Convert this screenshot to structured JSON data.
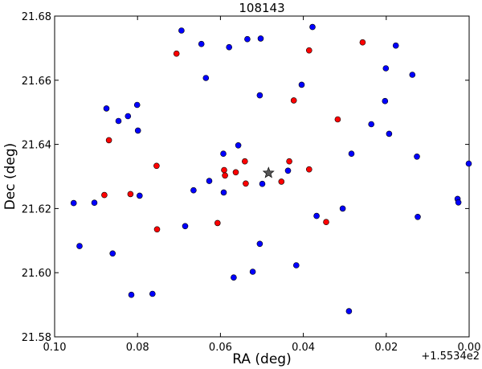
{
  "chart_data": {
    "type": "scatter",
    "title": "108143",
    "xlabel": "RA (deg)",
    "ylabel": "Dec (deg)",
    "x_offset_label": "+1.5534e2",
    "xlim": [
      0.1,
      0.0
    ],
    "ylim": [
      21.58,
      21.68
    ],
    "x_ticks": [
      "0.10",
      "0.08",
      "0.06",
      "0.04",
      "0.02",
      "0.00"
    ],
    "y_ticks": [
      "21.58",
      "21.60",
      "21.62",
      "21.64",
      "21.66",
      "21.68"
    ],
    "grid": false,
    "colors": {
      "blue": "#0000ff",
      "red": "#ff0000",
      "star": "#555555"
    },
    "series": [
      {
        "color": "blue",
        "points": [
          [
            0.0694,
            21.6755
          ],
          [
            0.0646,
            21.6713
          ],
          [
            0.0579,
            21.6703
          ],
          [
            0.0535,
            21.6728
          ],
          [
            0.0503,
            21.673
          ],
          [
            0.0378,
            21.6766
          ],
          [
            0.0177,
            21.6708
          ],
          [
            0.0635,
            21.6607
          ],
          [
            0.0404,
            21.6586
          ],
          [
            0.0201,
            21.6637
          ],
          [
            0.0137,
            21.6617
          ],
          [
            0.0505,
            21.6553
          ],
          [
            0.0875,
            21.6512
          ],
          [
            0.0801,
            21.6523
          ],
          [
            0.0823,
            21.6488
          ],
          [
            0.0846,
            21.6473
          ],
          [
            0.0799,
            21.6443
          ],
          [
            0.0203,
            21.6535
          ],
          [
            0.0236,
            21.6463
          ],
          [
            0.0193,
            21.6433
          ],
          [
            0.0557,
            21.6397
          ],
          [
            0.0593,
            21.6371
          ],
          [
            0.0284,
            21.6371
          ],
          [
            0.0126,
            21.6362
          ],
          [
            0.0001,
            21.634
          ],
          [
            0.0437,
            21.6318
          ],
          [
            0.0499,
            21.6277
          ],
          [
            0.0627,
            21.6286
          ],
          [
            0.0665,
            21.6257
          ],
          [
            0.0592,
            21.625
          ],
          [
            0.0795,
            21.624
          ],
          [
            0.0954,
            21.6217
          ],
          [
            0.0904,
            21.6218
          ],
          [
            0.0305,
            21.62
          ],
          [
            0.0368,
            21.6177
          ],
          [
            0.0028,
            21.623
          ],
          [
            0.0026,
            21.6219
          ],
          [
            0.0124,
            21.6174
          ],
          [
            0.0685,
            21.6145
          ],
          [
            0.094,
            21.6083
          ],
          [
            0.086,
            21.606
          ],
          [
            0.0505,
            21.609
          ],
          [
            0.0417,
            21.6023
          ],
          [
            0.0522,
            21.6003
          ],
          [
            0.0568,
            21.5985
          ],
          [
            0.0815,
            21.5931
          ],
          [
            0.0764,
            21.5934
          ],
          [
            0.029,
            21.588
          ]
        ]
      },
      {
        "color": "red",
        "points": [
          [
            0.0706,
            21.6683
          ],
          [
            0.0257,
            21.6718
          ],
          [
            0.0386,
            21.6693
          ],
          [
            0.0423,
            21.6537
          ],
          [
            0.0317,
            21.6478
          ],
          [
            0.0869,
            21.6413
          ],
          [
            0.0754,
            21.6333
          ],
          [
            0.0591,
            21.632
          ],
          [
            0.0589,
            21.6303
          ],
          [
            0.0563,
            21.6313
          ],
          [
            0.0541,
            21.6347
          ],
          [
            0.0539,
            21.6278
          ],
          [
            0.0434,
            21.6347
          ],
          [
            0.0386,
            21.6322
          ],
          [
            0.0453,
            21.6284
          ],
          [
            0.088,
            21.6242
          ],
          [
            0.0817,
            21.6245
          ],
          [
            0.0607,
            21.6155
          ],
          [
            0.0753,
            21.6135
          ],
          [
            0.0345,
            21.6158
          ]
        ]
      }
    ],
    "marker": {
      "shape": "star",
      "x": 0.0484,
      "y": 21.6311
    }
  }
}
